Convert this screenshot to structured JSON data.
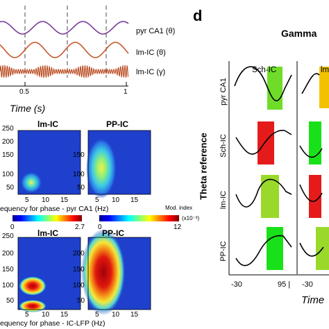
{
  "traces_panel": {
    "labels": [
      "pyr CA1 (θ)",
      "lm-IC (θ)",
      "lm-IC (γ)"
    ],
    "colors": [
      "#7a3a9a",
      "#c8562a",
      "#b84a1e"
    ],
    "x_ticks": [
      "0.5",
      "1"
    ],
    "x_axis_label": "Time (s)"
  },
  "comod_top": {
    "panel_titles": [
      "lm-IC",
      "PP-IC"
    ],
    "y_ticks": [
      "250",
      "200",
      "150",
      "100",
      "50"
    ],
    "x_ticks": [
      "5",
      "10",
      "15"
    ],
    "x_axis_label": "equency for phase - pyr CA1 (Hz)"
  },
  "colorbars": {
    "left": {
      "min": "0",
      "max": "2.7"
    },
    "right": {
      "min": "0",
      "max": "12"
    },
    "title": "Mod. index",
    "unit": "(x10⁻³)"
  },
  "comod_bottom": {
    "panel_titles": [
      "lm-IC",
      "PP-IC"
    ],
    "y_ticks": [
      "250",
      "200",
      "150",
      "100",
      "50"
    ],
    "x_ticks": [
      "5",
      "10",
      "15"
    ],
    "x_axis_label": "equency for phase - IC-LFP (Hz)"
  },
  "panel_d": {
    "letter": "d",
    "title": "Gamma",
    "columns": [
      "Sch-IC",
      "lm"
    ],
    "y_group_label": "Theta reference",
    "rows": [
      "pyr CA1",
      "Sch-IC",
      "lm-IC",
      "PP-IC"
    ],
    "x_ticks": [
      "-30",
      "95 |",
      "-30"
    ],
    "x_axis_label": "Time",
    "bar_colors": [
      "#6fdc2a",
      "#e51b1b",
      "#9ad92a",
      "#19e119",
      "#f2c200"
    ]
  }
}
